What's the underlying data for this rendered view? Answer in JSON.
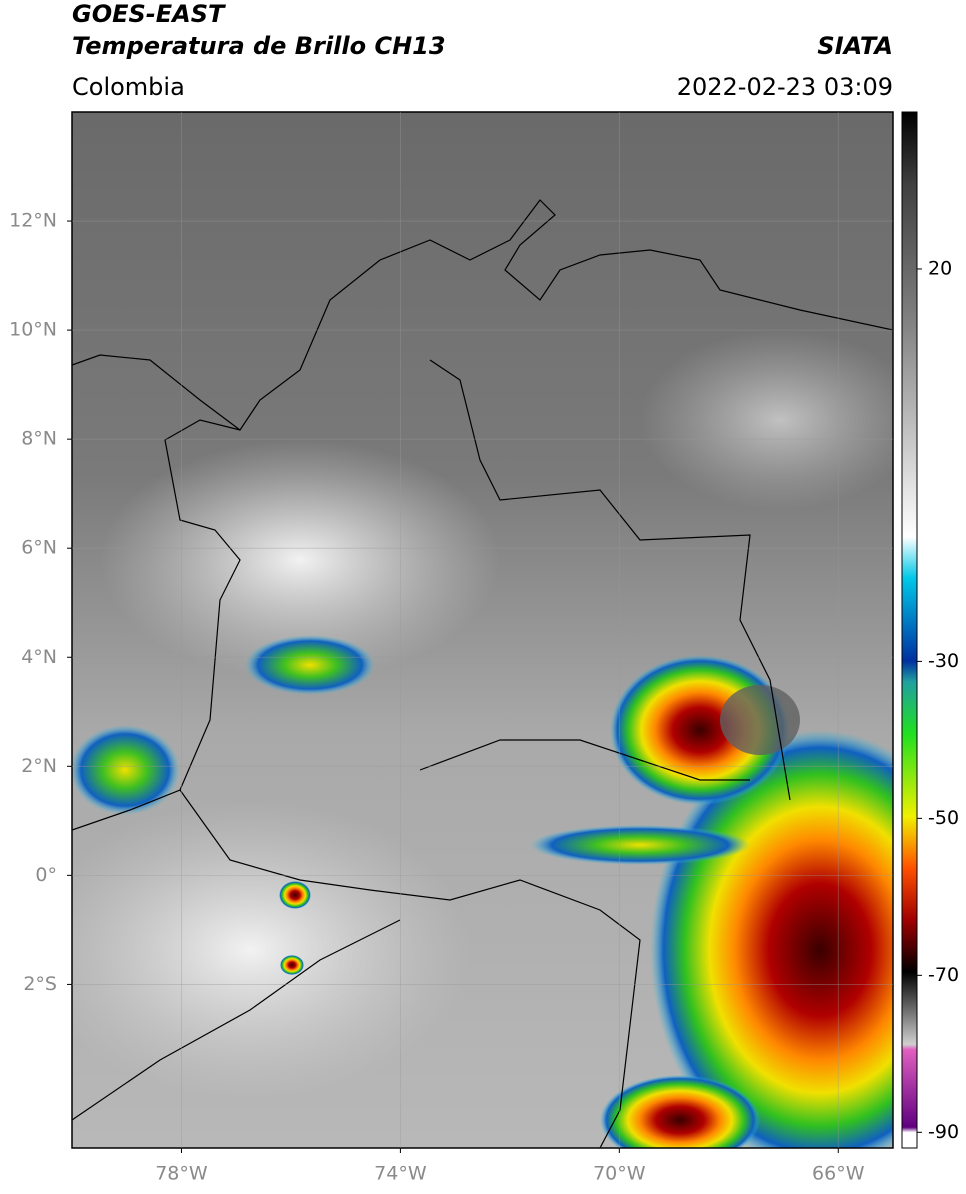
{
  "chart_data": {
    "type": "map",
    "title": "GOES-EAST",
    "subtitle": "Temperatura de Brillo CH13",
    "source": "SIATA",
    "region": "Colombia",
    "timestamp": "2022-02-23 03:09",
    "xlim": [
      -80,
      -65
    ],
    "ylim": [
      -5,
      14
    ],
    "xticks": [
      {
        "value": -78,
        "label": "78°W"
      },
      {
        "value": -74,
        "label": "74°W"
      },
      {
        "value": -70,
        "label": "70°W"
      },
      {
        "value": -66,
        "label": "66°W"
      }
    ],
    "yticks": [
      {
        "value": 12,
        "label": "12°N"
      },
      {
        "value": 10,
        "label": "10°N"
      },
      {
        "value": 8,
        "label": "8°N"
      },
      {
        "value": 6,
        "label": "6°N"
      },
      {
        "value": 4,
        "label": "4°N"
      },
      {
        "value": 2,
        "label": "2°N"
      },
      {
        "value": 0,
        "label": "0°"
      },
      {
        "value": -2,
        "label": "2°S"
      }
    ],
    "grid": true,
    "colorbar": {
      "lim": [
        -92,
        40
      ],
      "ticks": [
        20,
        -30,
        -50,
        -70,
        -90
      ]
    }
  }
}
